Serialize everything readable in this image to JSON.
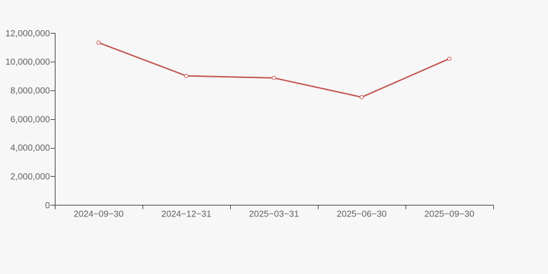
{
  "page": {
    "background_color": "#f7f7f7"
  },
  "chart_data": {
    "type": "line",
    "title": "",
    "xlabel": "",
    "ylabel": "",
    "categories": [
      "2024−09−30",
      "2024−12−31",
      "2025−03−31",
      "2025−06−30",
      "2025−09−30"
    ],
    "values": [
      11330000,
      9010000,
      8870000,
      7530000,
      10210000
    ],
    "ylim": [
      0,
      12000000
    ],
    "y_tick_interval": 2000000,
    "y_tick_labels": [
      "0",
      "2,000,000",
      "4,000,000",
      "6,000,000",
      "8,000,000",
      "10,000,000",
      "12,000,000"
    ],
    "grid": false,
    "legend": "none",
    "marker_style": "open-circle",
    "line_color": "#c35450",
    "marker_fill": "#ffffff",
    "axis_color": "#444444",
    "label_color": "#5f5f5f"
  }
}
